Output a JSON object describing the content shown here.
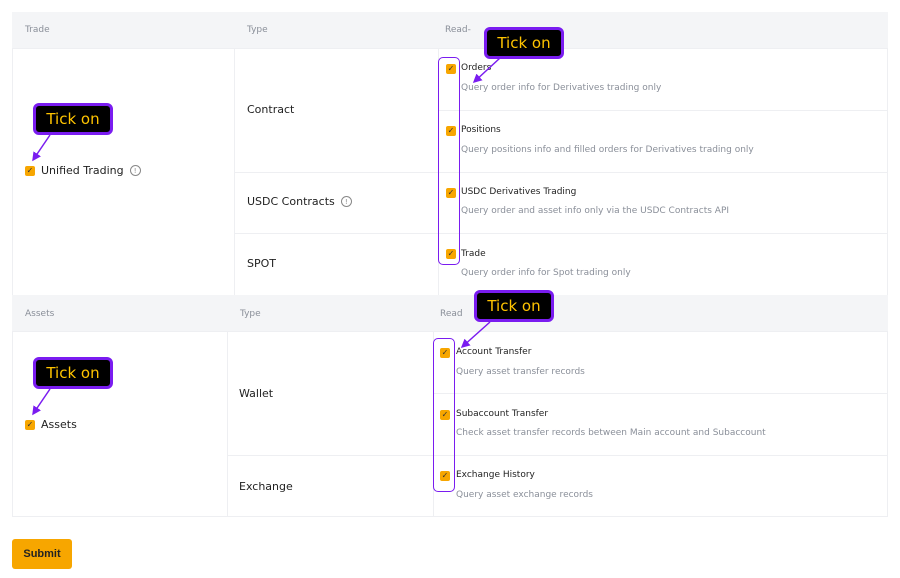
{
  "trade_section": {
    "header": {
      "col1": "Trade",
      "col2": "Type",
      "col3": "Read-"
    },
    "product": {
      "label": "Unified Trading",
      "checked": true
    },
    "types": [
      {
        "label": "Contract"
      },
      {
        "label": "USDC Contracts"
      },
      {
        "label": "SPOT"
      }
    ],
    "permissions": [
      {
        "title": "Orders",
        "desc": "Query order info for Derivatives trading only",
        "checked": true
      },
      {
        "title": "Positions",
        "desc": "Query positions info and filled orders for Derivatives trading only",
        "checked": true
      },
      {
        "title": "USDC Derivatives Trading",
        "desc": "Query order and asset info only via the USDC Contracts API",
        "checked": true
      },
      {
        "title": "Trade",
        "desc": "Query order info for Spot trading only",
        "checked": true
      }
    ]
  },
  "assets_section": {
    "header": {
      "col1": "Assets",
      "col2": "Type",
      "col3": "Read"
    },
    "product": {
      "label": "Assets",
      "checked": true
    },
    "types": [
      {
        "label": "Wallet"
      },
      {
        "label": "Exchange"
      }
    ],
    "permissions": [
      {
        "title": "Account Transfer",
        "desc": "Query asset transfer records",
        "checked": true
      },
      {
        "title": "Subaccount Transfer",
        "desc": "Check asset transfer records between Main account and Subaccount",
        "checked": true
      },
      {
        "title": "Exchange History",
        "desc": "Query asset exchange records",
        "checked": true
      }
    ]
  },
  "annotations": {
    "callout_text": "Tick on"
  },
  "submit_label": "Submit",
  "icons": {
    "checkbox": "checkmark-icon",
    "info": "info-icon"
  },
  "colors": {
    "accent": "#f7a600",
    "annotation": "#7a1cf0",
    "callout_text": "#ffc400"
  }
}
